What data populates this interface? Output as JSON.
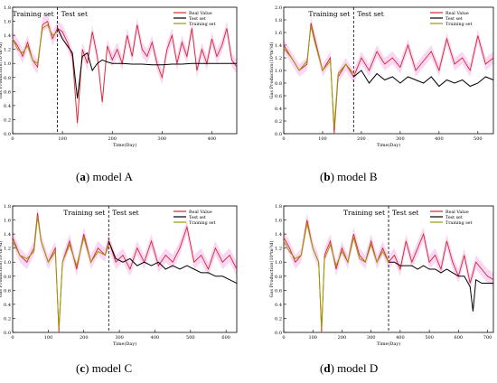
{
  "captions": [
    {
      "letter": "a",
      "name": "model A"
    },
    {
      "letter": "b",
      "name": "model B"
    },
    {
      "letter": "c",
      "name": "model C"
    },
    {
      "letter": "d",
      "name": "model D"
    }
  ],
  "colors": {
    "real": "#d62728",
    "test": "#000000",
    "training": "#9a9a00",
    "band": "#f2a6e8"
  },
  "chart_data": [
    {
      "type": "line",
      "panel": "model A",
      "xlabel": "Time(Day)",
      "ylabel": "Gas Production(10⁴m³/d)",
      "xlim": [
        0,
        450
      ],
      "ylim": [
        0,
        1.8
      ],
      "xticks": [
        0,
        100,
        200,
        300,
        400
      ],
      "yticks": [
        0.0,
        0.2,
        0.4,
        0.6,
        0.8,
        1.0,
        1.2,
        1.4,
        1.6,
        1.8
      ],
      "split": 90,
      "region_labels": {
        "training": "Training set",
        "test": "Test set"
      },
      "legend": [
        "Real Value",
        "Test set",
        "Training set"
      ],
      "legend_position": "top-right",
      "series": [
        {
          "name": "Real Value",
          "x": [
            0,
            10,
            20,
            30,
            40,
            50,
            60,
            70,
            80,
            90,
            100,
            110,
            120,
            130,
            140,
            150,
            160,
            170,
            180,
            190,
            200,
            210,
            220,
            230,
            240,
            250,
            260,
            270,
            280,
            290,
            300,
            310,
            320,
            330,
            340,
            350,
            360,
            370,
            380,
            390,
            400,
            410,
            420,
            430,
            440,
            450
          ],
          "y": [
            1.35,
            1.25,
            1.1,
            1.3,
            1.05,
            0.95,
            1.55,
            1.6,
            1.35,
            1.5,
            1.45,
            1.3,
            1.1,
            0.15,
            1.2,
            1.0,
            1.45,
            1.1,
            0.45,
            1.25,
            1.05,
            1.2,
            1.0,
            1.4,
            1.1,
            1.55,
            1.2,
            1.1,
            1.3,
            1.0,
            0.8,
            1.2,
            1.4,
            1.0,
            1.3,
            1.1,
            1.5,
            0.9,
            1.2,
            1.0,
            1.35,
            1.1,
            1.25,
            1.5,
            1.05,
            0.95
          ]
        },
        {
          "name": "Test set",
          "x": [
            90,
            100,
            110,
            120,
            130,
            140,
            150,
            160,
            170,
            180,
            190,
            200,
            220,
            240,
            260,
            280,
            300,
            320,
            340,
            360,
            380,
            400,
            420,
            440,
            450
          ],
          "y": [
            1.5,
            1.35,
            1.25,
            1.15,
            0.5,
            1.1,
            1.15,
            0.9,
            1.0,
            1.05,
            1.02,
            1.0,
            1.0,
            0.99,
            0.99,
            0.98,
            0.98,
            0.99,
            0.99,
            1.0,
            1.0,
            1.0,
            1.0,
            1.0,
            1.0
          ]
        },
        {
          "name": "Training set",
          "x": [
            0,
            10,
            20,
            30,
            40,
            50,
            60,
            70,
            80,
            90
          ],
          "y": [
            1.35,
            1.2,
            1.15,
            1.25,
            1.05,
            1.0,
            1.5,
            1.55,
            1.4,
            1.45
          ]
        }
      ]
    },
    {
      "type": "line",
      "panel": "model B",
      "xlabel": "Time(Day)",
      "ylabel": "Gas Production(10⁴m³/d)",
      "xlim": [
        0,
        540
      ],
      "ylim": [
        0,
        2.0
      ],
      "xticks": [
        0,
        100,
        200,
        300,
        400,
        500
      ],
      "yticks": [
        0.0,
        0.2,
        0.4,
        0.6,
        0.8,
        1.0,
        1.2,
        1.4,
        1.6,
        1.8,
        2.0
      ],
      "split": 180,
      "region_labels": {
        "training": "Training set",
        "test": "Test set"
      },
      "legend": [
        "Real Value",
        "Test set",
        "Training set"
      ],
      "legend_position": "top-right",
      "series": [
        {
          "name": "Real Value",
          "x": [
            0,
            20,
            40,
            60,
            70,
            80,
            100,
            120,
            130,
            140,
            160,
            180,
            200,
            220,
            240,
            260,
            280,
            300,
            320,
            340,
            360,
            380,
            400,
            420,
            440,
            460,
            480,
            500,
            520,
            540
          ],
          "y": [
            1.4,
            1.2,
            1.0,
            1.1,
            1.75,
            1.5,
            1.0,
            1.2,
            0.0,
            0.9,
            1.1,
            0.9,
            1.2,
            1.0,
            1.3,
            1.1,
            1.2,
            1.05,
            1.4,
            1.0,
            1.15,
            1.3,
            1.0,
            1.5,
            1.1,
            1.2,
            1.0,
            1.55,
            1.1,
            1.2
          ]
        },
        {
          "name": "Test set",
          "x": [
            180,
            200,
            220,
            240,
            260,
            280,
            300,
            320,
            340,
            360,
            380,
            400,
            420,
            440,
            460,
            480,
            500,
            520,
            540
          ],
          "y": [
            0.9,
            1.0,
            0.8,
            0.95,
            0.85,
            0.9,
            0.8,
            0.9,
            0.85,
            0.8,
            0.9,
            0.75,
            0.85,
            0.8,
            0.85,
            0.75,
            0.8,
            0.9,
            0.85
          ]
        },
        {
          "name": "Training set",
          "x": [
            0,
            20,
            40,
            60,
            70,
            80,
            100,
            120,
            130,
            140,
            160,
            180
          ],
          "y": [
            1.35,
            1.2,
            1.0,
            1.15,
            1.7,
            1.45,
            1.0,
            1.15,
            0.1,
            0.95,
            1.1,
            0.95
          ]
        }
      ]
    },
    {
      "type": "line",
      "panel": "model C",
      "xlabel": "Time(Day)",
      "ylabel": "Gas Production(10⁴m³/d)",
      "xlim": [
        0,
        630
      ],
      "ylim": [
        0,
        1.8
      ],
      "xticks": [
        0,
        100,
        200,
        300,
        400,
        500,
        600
      ],
      "yticks": [
        0.0,
        0.2,
        0.4,
        0.6,
        0.8,
        1.0,
        1.2,
        1.4,
        1.6,
        1.8
      ],
      "split": 270,
      "region_labels": {
        "training": "Training set",
        "test": "Test set"
      },
      "legend": [
        "Real Value",
        "Test set",
        "Training set"
      ],
      "legend_position": "top-right",
      "series": [
        {
          "name": "Real Value",
          "x": [
            0,
            20,
            40,
            60,
            70,
            80,
            100,
            120,
            130,
            140,
            160,
            180,
            200,
            220,
            240,
            260,
            270,
            290,
            310,
            330,
            350,
            370,
            390,
            410,
            430,
            450,
            470,
            490,
            510,
            530,
            550,
            570,
            590,
            610,
            630
          ],
          "y": [
            1.35,
            1.1,
            1.0,
            1.2,
            1.7,
            1.3,
            1.0,
            1.2,
            0.0,
            1.0,
            1.3,
            0.9,
            1.4,
            1.0,
            1.2,
            1.1,
            1.3,
            1.0,
            1.1,
            0.9,
            1.2,
            1.0,
            1.3,
            0.95,
            1.1,
            1.0,
            1.2,
            1.5,
            1.0,
            1.1,
            0.9,
            1.2,
            1.0,
            1.1,
            0.9
          ]
        },
        {
          "name": "Test set",
          "x": [
            270,
            290,
            310,
            330,
            350,
            370,
            390,
            410,
            430,
            450,
            470,
            490,
            510,
            530,
            550,
            570,
            590,
            610,
            630
          ],
          "y": [
            1.3,
            1.05,
            1.0,
            1.05,
            0.95,
            1.0,
            0.95,
            1.0,
            0.9,
            0.95,
            0.9,
            0.95,
            0.9,
            0.85,
            0.85,
            0.8,
            0.8,
            0.75,
            0.7
          ]
        },
        {
          "name": "Training set",
          "x": [
            0,
            20,
            40,
            60,
            70,
            80,
            100,
            120,
            130,
            140,
            160,
            180,
            200,
            220,
            240,
            260,
            270
          ],
          "y": [
            1.3,
            1.1,
            1.05,
            1.15,
            1.65,
            1.3,
            1.0,
            1.15,
            0.05,
            1.0,
            1.25,
            0.95,
            1.35,
            1.0,
            1.15,
            1.1,
            1.25
          ]
        }
      ]
    },
    {
      "type": "line",
      "panel": "model D",
      "xlabel": "Time(Day)",
      "ylabel": "Gas Production(10⁴m³/d)",
      "xlim": [
        0,
        720
      ],
      "ylim": [
        0,
        1.8
      ],
      "xticks": [
        0,
        100,
        200,
        300,
        400,
        500,
        600,
        700
      ],
      "yticks": [
        0.0,
        0.2,
        0.4,
        0.6,
        0.8,
        1.0,
        1.2,
        1.4,
        1.6,
        1.8
      ],
      "split": 360,
      "region_labels": {
        "training": "Training set",
        "test": "Test set"
      },
      "legend": [
        "Real Value",
        "Test set",
        "Training set"
      ],
      "legend_position": "top-right",
      "series": [
        {
          "name": "Real Value",
          "x": [
            0,
            20,
            40,
            60,
            80,
            100,
            120,
            130,
            140,
            160,
            180,
            200,
            220,
            240,
            260,
            280,
            300,
            320,
            340,
            360,
            380,
            400,
            420,
            440,
            460,
            480,
            500,
            520,
            540,
            560,
            580,
            600,
            620,
            640,
            660,
            680,
            700,
            720
          ],
          "y": [
            1.35,
            1.2,
            1.0,
            1.1,
            1.6,
            1.2,
            1.0,
            0.0,
            1.1,
            1.3,
            0.9,
            1.2,
            1.0,
            1.4,
            1.1,
            1.0,
            1.3,
            1.0,
            1.2,
            1.0,
            1.1,
            0.9,
            1.3,
            1.0,
            1.2,
            1.4,
            1.0,
            1.1,
            0.9,
            1.3,
            1.0,
            0.8,
            1.1,
            0.7,
            1.0,
            0.9,
            0.8,
            0.75
          ]
        },
        {
          "name": "Test set",
          "x": [
            360,
            380,
            400,
            420,
            440,
            460,
            480,
            500,
            520,
            540,
            560,
            580,
            600,
            620,
            640,
            650,
            660,
            680,
            700,
            720
          ],
          "y": [
            1.0,
            1.0,
            0.95,
            0.95,
            0.95,
            0.9,
            0.95,
            0.9,
            0.9,
            0.85,
            0.9,
            0.85,
            0.8,
            0.8,
            0.65,
            0.3,
            0.75,
            0.7,
            0.7,
            0.7
          ]
        },
        {
          "name": "Training set",
          "x": [
            0,
            20,
            40,
            60,
            80,
            100,
            120,
            130,
            140,
            160,
            180,
            200,
            220,
            240,
            260,
            280,
            300,
            320,
            340,
            360
          ],
          "y": [
            1.3,
            1.15,
            1.05,
            1.1,
            1.55,
            1.2,
            1.0,
            0.05,
            1.05,
            1.25,
            0.95,
            1.15,
            1.0,
            1.35,
            1.05,
            1.0,
            1.25,
            1.0,
            1.15,
            1.0
          ]
        }
      ]
    }
  ]
}
